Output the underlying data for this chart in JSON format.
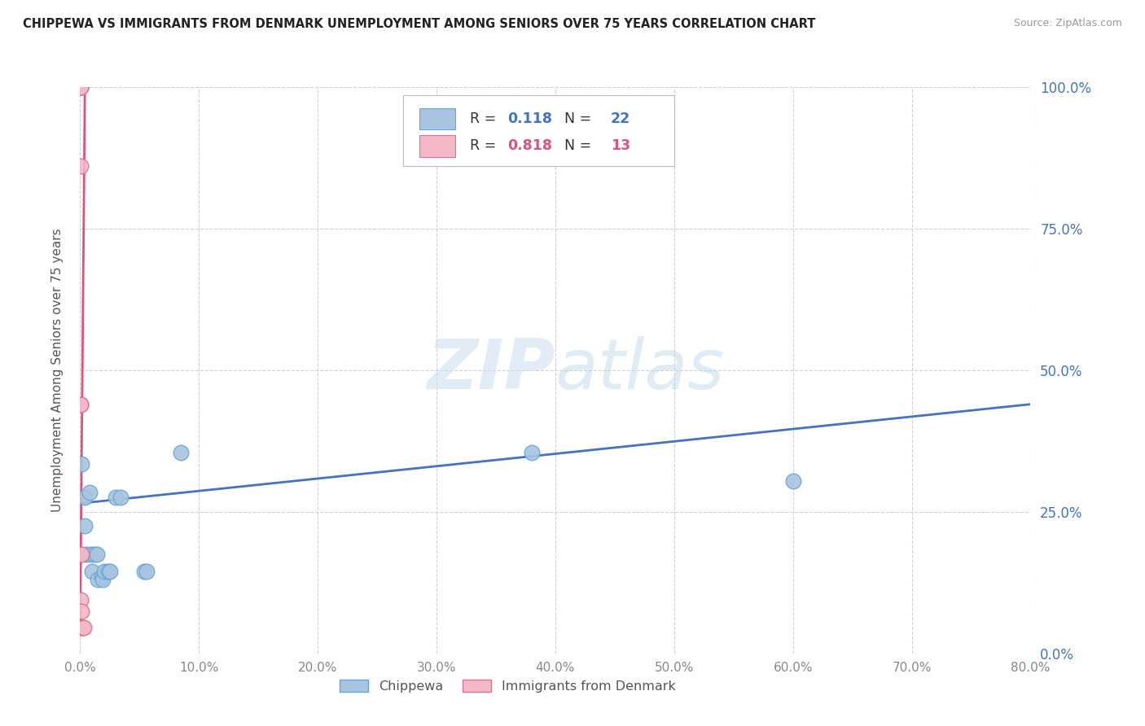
{
  "title": "CHIPPEWA VS IMMIGRANTS FROM DENMARK UNEMPLOYMENT AMONG SENIORS OVER 75 YEARS CORRELATION CHART",
  "source": "Source: ZipAtlas.com",
  "ylabel": "Unemployment Among Seniors over 75 years",
  "xlim": [
    0.0,
    0.8
  ],
  "ylim": [
    0.0,
    1.0
  ],
  "xticks": [
    0.0,
    0.1,
    0.2,
    0.3,
    0.4,
    0.5,
    0.6,
    0.7,
    0.8
  ],
  "yticks": [
    0.0,
    0.25,
    0.5,
    0.75,
    1.0
  ],
  "chippewa_color": "#a8c4e0",
  "chippewa_edge_color": "#6aa8d4",
  "denmark_color": "#f4b8c8",
  "denmark_edge_color": "#e07090",
  "blue_line_color": "#4472c4",
  "pink_line_color": "#e05080",
  "R_blue": 0.118,
  "N_blue": 22,
  "R_pink": 0.818,
  "N_pink": 13,
  "chippewa_x": [
    0.001,
    0.004,
    0.004,
    0.005,
    0.008,
    0.009,
    0.01,
    0.012,
    0.014,
    0.015,
    0.018,
    0.019,
    0.02,
    0.024,
    0.025,
    0.03,
    0.034,
    0.054,
    0.056,
    0.085,
    0.38,
    0.6
  ],
  "chippewa_y": [
    0.335,
    0.275,
    0.225,
    0.175,
    0.285,
    0.175,
    0.145,
    0.175,
    0.175,
    0.13,
    0.135,
    0.13,
    0.145,
    0.145,
    0.145,
    0.275,
    0.275,
    0.145,
    0.145,
    0.355,
    0.355,
    0.305
  ],
  "denmark_x": [
    0.0005,
    0.0005,
    0.0005,
    0.0005,
    0.0005,
    0.0005,
    0.0005,
    0.001,
    0.001,
    0.001,
    0.0015,
    0.0015,
    0.003
  ],
  "denmark_y": [
    1.0,
    1.0,
    1.0,
    0.86,
    0.44,
    0.44,
    0.095,
    0.175,
    0.075,
    0.045,
    0.045,
    0.045,
    0.045
  ],
  "blue_line_x": [
    0.0,
    0.8
  ],
  "blue_line_y": [
    0.265,
    0.44
  ],
  "pink_line_x": [
    0.0,
    0.004
  ],
  "pink_line_y": [
    0.05,
    1.0
  ],
  "watermark_zip": "ZIP",
  "watermark_atlas": "atlas",
  "background_color": "#ffffff",
  "grid_color": "#d0d0d0",
  "title_color": "#222222",
  "source_color": "#999999",
  "ylabel_color": "#555555",
  "tick_color": "#888888",
  "right_tick_color": "#4472c4"
}
